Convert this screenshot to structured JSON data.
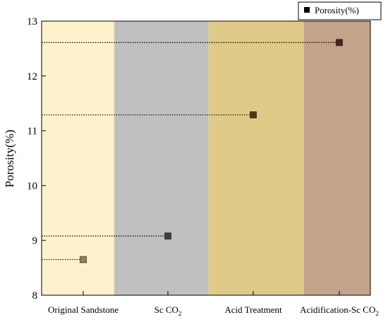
{
  "chart_data": {
    "type": "scatter",
    "title": "",
    "xlabel": "",
    "ylabel": "Porosity(%)",
    "ylim": [
      8,
      13
    ],
    "yticks": [
      8,
      9,
      10,
      11,
      12,
      13
    ],
    "grid": false,
    "legend": {
      "position": "top-right",
      "entries": [
        "Porosity(%)"
      ]
    },
    "categories": [
      {
        "main": "Original Sandstone",
        "sub": ""
      },
      {
        "main": "Sc CO",
        "sub": "2"
      },
      {
        "main": "Acid Treatment",
        "sub": ""
      },
      {
        "main": "Acidification-Sc CO",
        "sub": "2"
      }
    ],
    "series": [
      {
        "name": "Porosity(%)",
        "values": [
          8.65,
          9.08,
          11.29,
          12.61
        ]
      }
    ],
    "band_colors": [
      "#fdf2cc",
      "#c0c0c0",
      "#dfca88",
      "#c3a38a"
    ],
    "marker_colors": [
      "#8f8350",
      "#3e3e3e",
      "#4f3a10",
      "#4a2416"
    ]
  }
}
